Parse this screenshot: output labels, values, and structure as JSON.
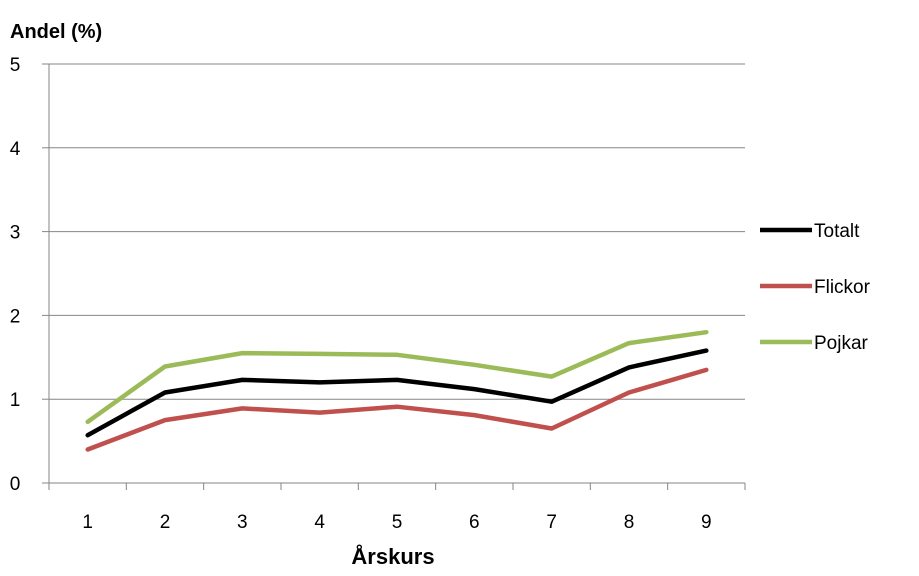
{
  "chart_data": {
    "type": "line",
    "ylabel": "Andel (%)",
    "xlabel": "Årskurs",
    "categories": [
      "1",
      "2",
      "3",
      "4",
      "5",
      "6",
      "7",
      "8",
      "9"
    ],
    "ylim": [
      0,
      5
    ],
    "yticks": [
      "0",
      "1",
      "2",
      "3",
      "4",
      "5"
    ],
    "grid": true,
    "legend_position": "right",
    "series": [
      {
        "name": "Totalt",
        "color": "#000000",
        "values": [
          0.57,
          1.08,
          1.23,
          1.2,
          1.23,
          1.12,
          0.97,
          1.38,
          1.58
        ]
      },
      {
        "name": "Flickor",
        "color": "#c0504d",
        "values": [
          0.4,
          0.75,
          0.89,
          0.84,
          0.91,
          0.81,
          0.65,
          1.08,
          1.35
        ]
      },
      {
        "name": "Pojkar",
        "color": "#9bbb59",
        "values": [
          0.73,
          1.39,
          1.55,
          1.54,
          1.53,
          1.41,
          1.27,
          1.67,
          1.8
        ]
      }
    ]
  }
}
